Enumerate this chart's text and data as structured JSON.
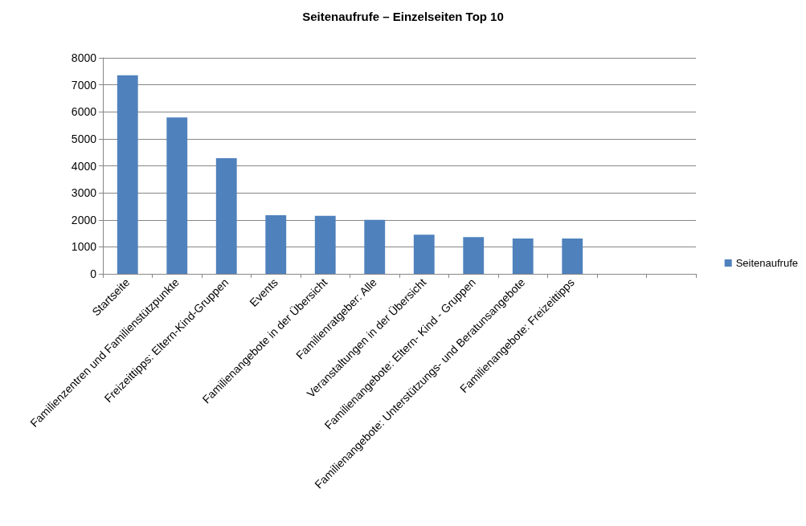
{
  "chart_data": {
    "type": "bar",
    "title": "Seitenaufrufe – Einzelseiten Top 10",
    "categories": [
      "Startseite",
      "Familienzentren und Familienstützpunkte",
      "Freizeittipps: Eltern-Kind-Gruppen",
      "Events",
      "Familienangebote in der Übersicht",
      "Familienratgeber: Alle",
      "Veranstaltungen in der Übersicht",
      "Familienangebote: Eltern- Kind - Gruppen",
      "Familienangebote: Unterstützungs- und Beratunsangebote",
      "Familienangebote: Freizeittipps",
      null,
      null
    ],
    "series": [
      {
        "name": "Seitenaufrufe",
        "color": "#4f81bd",
        "values": [
          7350,
          5790,
          4280,
          2170,
          2150,
          2000,
          1450,
          1360,
          1310,
          1310,
          null,
          null
        ]
      }
    ],
    "ylim": [
      0,
      8000
    ],
    "yticks": [
      0,
      1000,
      2000,
      3000,
      4000,
      5000,
      6000,
      7000,
      8000
    ],
    "grid": "y",
    "legend": "right"
  }
}
